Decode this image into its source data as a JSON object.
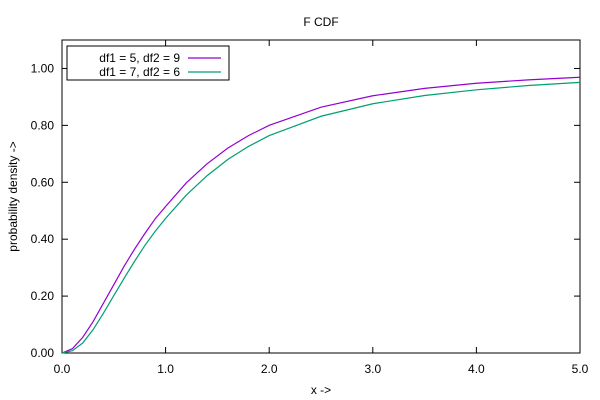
{
  "chart_data": {
    "type": "line",
    "title": "F CDF",
    "xlabel": "x ->",
    "ylabel": "probability density ->",
    "xlim": [
      0.0,
      5.0
    ],
    "ylim": [
      0.0,
      1.1
    ],
    "xticks": [
      "0.0",
      "1.0",
      "2.0",
      "3.0",
      "4.0",
      "5.0"
    ],
    "yticks": [
      "0.00",
      "0.20",
      "0.40",
      "0.60",
      "0.80",
      "1.00"
    ],
    "grid": false,
    "legend_position": "top-left",
    "x": [
      0.0,
      0.1,
      0.2,
      0.3,
      0.4,
      0.5,
      0.6,
      0.7,
      0.8,
      0.9,
      1.0,
      1.2,
      1.4,
      1.6,
      1.8,
      2.0,
      2.5,
      3.0,
      3.5,
      4.0,
      4.5,
      5.0
    ],
    "series": [
      {
        "name": "df1 = 5, df2 = 9",
        "color": "#9400d3",
        "values": [
          0.0,
          0.015,
          0.055,
          0.11,
          0.175,
          0.24,
          0.305,
          0.365,
          0.42,
          0.472,
          0.515,
          0.598,
          0.665,
          0.72,
          0.764,
          0.8,
          0.864,
          0.904,
          0.93,
          0.948,
          0.96,
          0.969
        ]
      },
      {
        "name": "df1 = 7, df2 = 6",
        "color": "#009e73",
        "values": [
          0.0,
          0.008,
          0.035,
          0.082,
          0.14,
          0.202,
          0.263,
          0.322,
          0.378,
          0.428,
          0.473,
          0.555,
          0.623,
          0.68,
          0.726,
          0.764,
          0.832,
          0.876,
          0.905,
          0.925,
          0.94,
          0.951
        ]
      }
    ]
  }
}
